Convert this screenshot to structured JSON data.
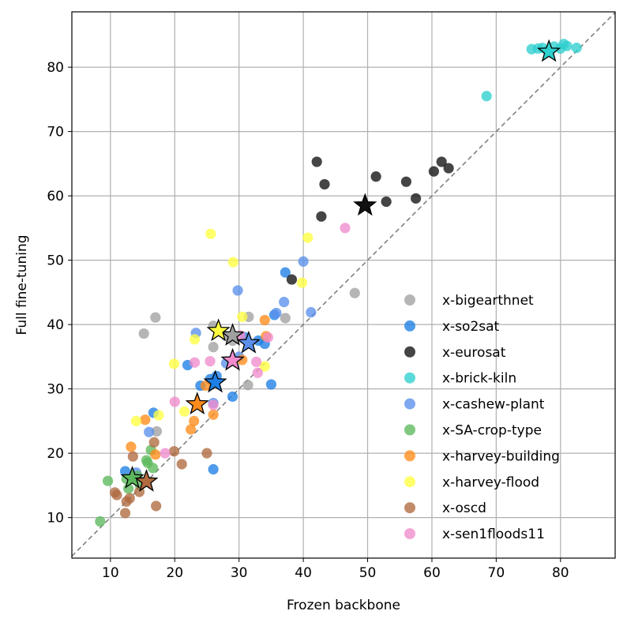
{
  "chart_data": {
    "type": "scatter",
    "xlabel": "Frozen backbone",
    "ylabel": "Full fine-tuning",
    "xlim": [
      4,
      88.5
    ],
    "ylim": [
      3.7,
      88.6
    ],
    "xticks": [
      "10",
      "20",
      "30",
      "40",
      "50",
      "60",
      "70",
      "80"
    ],
    "yticks": [
      "10",
      "20",
      "30",
      "40",
      "50",
      "60",
      "70",
      "80"
    ],
    "grid": true,
    "diagonal": "y = x (dashed gray)",
    "legend_position": "lower-right",
    "series": [
      {
        "name": "x-bigearthnet",
        "color": "#a0a0a0",
        "points": [
          [
            15.2,
            38.6
          ],
          [
            17.0,
            41.1
          ],
          [
            26.0,
            36.5
          ],
          [
            26.0,
            39.8
          ],
          [
            28.0,
            38.2
          ],
          [
            31.5,
            41.2
          ],
          [
            37.2,
            41.0
          ],
          [
            48.0,
            44.9
          ],
          [
            31.4,
            30.6
          ],
          [
            17.2,
            23.4
          ],
          [
            29.0,
            37.5
          ]
        ],
        "mean": [
          29.0,
          38.3
        ]
      },
      {
        "name": "x-so2sat",
        "color": "#1e7fe6",
        "points": [
          [
            12.3,
            17.2
          ],
          [
            16.7,
            26.3
          ],
          [
            22.0,
            33.7
          ],
          [
            26.5,
            32.0
          ],
          [
            29.0,
            28.8
          ],
          [
            31.0,
            38.0
          ],
          [
            33.0,
            37.5
          ],
          [
            34.0,
            37.0
          ],
          [
            35.0,
            30.7
          ],
          [
            35.5,
            41.5
          ],
          [
            37.2,
            48.1
          ],
          [
            26.0,
            17.5
          ],
          [
            25.5,
            31.5
          ],
          [
            24.0,
            30.5
          ]
        ],
        "mean": [
          26.3,
          31.0
        ]
      },
      {
        "name": "x-eurosat",
        "color": "#111111",
        "points": [
          [
            38.2,
            47.0
          ],
          [
            42.1,
            65.3
          ],
          [
            42.8,
            56.8
          ],
          [
            43.3,
            61.8
          ],
          [
            51.3,
            63.0
          ],
          [
            52.9,
            59.1
          ],
          [
            56.0,
            62.2
          ],
          [
            57.5,
            59.6
          ],
          [
            60.3,
            63.8
          ],
          [
            61.5,
            65.3
          ],
          [
            62.6,
            64.3
          ]
        ],
        "mean": [
          49.6,
          58.5
        ]
      },
      {
        "name": "x-brick-kiln",
        "color": "#2ed0d0",
        "points": [
          [
            68.5,
            75.5
          ],
          [
            75.5,
            82.8
          ],
          [
            76.5,
            82.9
          ],
          [
            77.2,
            83.0
          ],
          [
            78.0,
            82.6
          ],
          [
            79.0,
            83.2
          ],
          [
            80.0,
            82.9
          ],
          [
            81.0,
            83.3
          ],
          [
            82.5,
            83.0
          ],
          [
            80.5,
            83.6
          ]
        ],
        "mean": [
          78.2,
          82.4
        ]
      },
      {
        "name": "x-cashew-plant",
        "color": "#5a8fea",
        "points": [
          [
            23.3,
            38.7
          ],
          [
            29.8,
            45.3
          ],
          [
            40.0,
            49.8
          ],
          [
            41.2,
            41.9
          ],
          [
            37.0,
            43.5
          ],
          [
            35.8,
            41.8
          ],
          [
            26.0,
            27.8
          ],
          [
            28.0,
            34.0
          ],
          [
            30.0,
            35.0
          ],
          [
            16.0,
            23.3
          ],
          [
            14.0,
            17.0
          ]
        ],
        "mean": [
          31.5,
          37.1
        ]
      },
      {
        "name": "x-SA-crop-type",
        "color": "#5cb85c",
        "points": [
          [
            8.4,
            9.4
          ],
          [
            9.6,
            15.7
          ],
          [
            12.8,
            14.5
          ],
          [
            14.2,
            16.5
          ],
          [
            15.8,
            18.5
          ],
          [
            15.6,
            18.9
          ],
          [
            16.3,
            20.5
          ],
          [
            16.6,
            17.7
          ],
          [
            12.5,
            16.0
          ],
          [
            14.6,
            15.0
          ]
        ],
        "mean": [
          13.4,
          16.1
        ]
      },
      {
        "name": "x-harvey-building",
        "color": "#ff8c1a",
        "points": [
          [
            13.2,
            21.0
          ],
          [
            15.4,
            25.2
          ],
          [
            17.0,
            19.8
          ],
          [
            22.5,
            23.7
          ],
          [
            23.0,
            25.0
          ],
          [
            24.8,
            30.5
          ],
          [
            26.0,
            26.0
          ],
          [
            34.0,
            40.7
          ],
          [
            34.2,
            38.2
          ],
          [
            30.5,
            34.5
          ]
        ],
        "mean": [
          23.5,
          27.6
        ]
      },
      {
        "name": "x-harvey-flood",
        "color": "#ffff40",
        "points": [
          [
            25.6,
            54.1
          ],
          [
            29.1,
            49.7
          ],
          [
            40.7,
            53.5
          ],
          [
            39.8,
            46.5
          ],
          [
            30.5,
            41.2
          ],
          [
            23.1,
            37.7
          ],
          [
            19.9,
            33.9
          ],
          [
            17.5,
            25.9
          ],
          [
            14.0,
            25.0
          ],
          [
            21.5,
            26.5
          ],
          [
            34.0,
            33.5
          ]
        ],
        "mean": [
          26.8,
          39.0
        ]
      },
      {
        "name": "x-oscd",
        "color": "#b06a40",
        "points": [
          [
            10.7,
            13.9
          ],
          [
            12.3,
            10.7
          ],
          [
            12.5,
            12.5
          ],
          [
            13.0,
            13.0
          ],
          [
            14.5,
            14.0
          ],
          [
            16.8,
            21.7
          ],
          [
            17.1,
            11.8
          ],
          [
            19.9,
            20.3
          ],
          [
            21.1,
            18.3
          ],
          [
            25.0,
            20.0
          ],
          [
            13.5,
            19.5
          ],
          [
            11.0,
            13.5
          ]
        ],
        "mean": [
          15.6,
          15.6
        ]
      },
      {
        "name": "x-sen1floods11",
        "color": "#f08ccc",
        "points": [
          [
            18.5,
            20.0
          ],
          [
            20.0,
            28.0
          ],
          [
            23.1,
            34.1
          ],
          [
            25.5,
            34.3
          ],
          [
            30.2,
            38.3
          ],
          [
            32.7,
            34.2
          ],
          [
            32.9,
            32.5
          ],
          [
            46.5,
            55.0
          ],
          [
            34.5,
            38.0
          ],
          [
            26.0,
            27.5
          ]
        ],
        "mean": [
          29.0,
          34.4
        ]
      }
    ]
  }
}
